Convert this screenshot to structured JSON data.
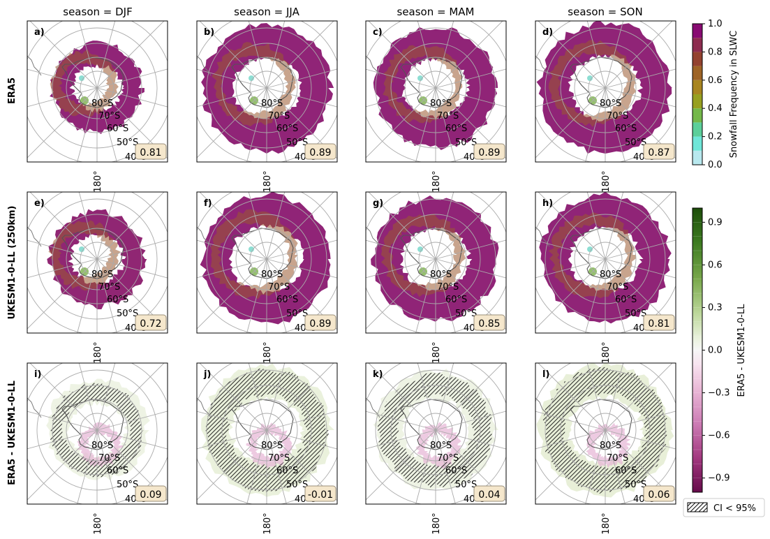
{
  "figure": {
    "column_titles": [
      "season = DJF",
      "season = JJA",
      "season = MAM",
      "season = SON"
    ],
    "row_labels": [
      "ERA5",
      "UKESM1-0-LL (250km)",
      "ERA5 - UKESM1-0-LL"
    ],
    "panels": [
      {
        "letter": "a)",
        "value": "0.81",
        "row": 0,
        "col": 0
      },
      {
        "letter": "b)",
        "value": "0.89",
        "row": 0,
        "col": 1
      },
      {
        "letter": "c)",
        "value": "0.89",
        "row": 0,
        "col": 2
      },
      {
        "letter": "d)",
        "value": "0.87",
        "row": 0,
        "col": 3
      },
      {
        "letter": "e)",
        "value": "0.72",
        "row": 1,
        "col": 0
      },
      {
        "letter": "f)",
        "value": "0.89",
        "row": 1,
        "col": 1
      },
      {
        "letter": "g)",
        "value": "0.85",
        "row": 1,
        "col": 2
      },
      {
        "letter": "h)",
        "value": "0.81",
        "row": 1,
        "col": 3
      },
      {
        "letter": "i)",
        "value": "0.09",
        "row": 2,
        "col": 0
      },
      {
        "letter": "j)",
        "value": "-0.01",
        "row": 2,
        "col": 1
      },
      {
        "letter": "k)",
        "value": "0.04",
        "row": 2,
        "col": 2
      },
      {
        "letter": "l)",
        "value": "0.06",
        "row": 2,
        "col": 3
      }
    ],
    "latitude_labels": [
      "80°S",
      "70°S",
      "60°S",
      "50°S",
      "40°S"
    ],
    "longitude_label": "180°"
  },
  "colorbar_top": {
    "label": "Snowfall Frequency in SLWC",
    "range": [
      0.0,
      1.0
    ],
    "ticks": [
      "0.0",
      "0.2",
      "0.4",
      "0.6",
      "0.8",
      "1.0"
    ],
    "colors": [
      "#b8e8ee",
      "#6fe6d8",
      "#5ccf9a",
      "#74b84a",
      "#97a020",
      "#a8851f",
      "#9e6426",
      "#93422f",
      "#8d2c4f",
      "#880b72"
    ]
  },
  "colorbar_bottom": {
    "label": "ERA5 - UKESM1-0-LL",
    "range": [
      -1.0,
      1.0
    ],
    "ticks": [
      "0.9",
      "0.6",
      "0.3",
      "0.0",
      "−0.3",
      "−0.6",
      "−0.9"
    ],
    "tick_values": [
      0.9,
      0.6,
      0.3,
      0.0,
      -0.3,
      -0.6,
      -0.9
    ]
  },
  "legend": {
    "label": "CI < 95%"
  }
}
